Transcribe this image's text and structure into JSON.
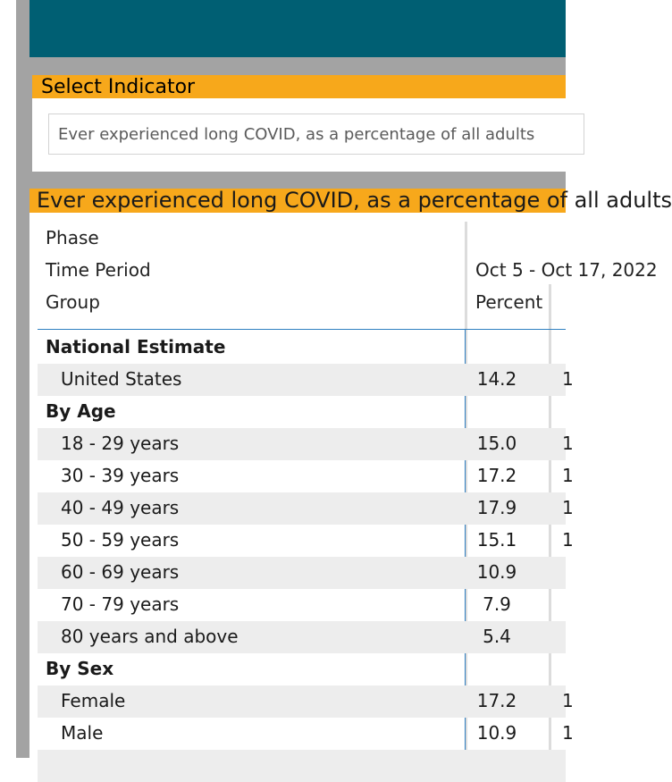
{
  "indicator": {
    "title": "Select Indicator",
    "selected": "Ever experienced long COVID, as a percentage of all adults"
  },
  "table": {
    "title": "Ever experienced long COVID, as a percentage of all adults",
    "header_phase": "Phase",
    "header_time": "Time Period",
    "header_group": "Group",
    "period_label": "Oct 5 - Oct 17, 2022",
    "percent_label": "Percent"
  },
  "rows": [
    {
      "label": "National Estimate",
      "value": "",
      "next": ""
    },
    {
      "label": "United States",
      "value": "14.2",
      "next": "1"
    },
    {
      "label": "By Age",
      "value": "",
      "next": ""
    },
    {
      "label": "18 - 29 years",
      "value": "15.0",
      "next": "1"
    },
    {
      "label": "30 - 39 years",
      "value": "17.2",
      "next": "1"
    },
    {
      "label": "40 - 49 years",
      "value": "17.9",
      "next": "1"
    },
    {
      "label": "50 - 59 years",
      "value": "15.1",
      "next": "1"
    },
    {
      "label": "60 - 69 years",
      "value": "10.9",
      "next": ""
    },
    {
      "label": "70 - 79 years",
      "value": "7.9",
      "next": ""
    },
    {
      "label": "80 years and above",
      "value": "5.4",
      "next": ""
    },
    {
      "label": "By Sex",
      "value": "",
      "next": ""
    },
    {
      "label": "Female",
      "value": "17.2",
      "next": "1"
    },
    {
      "label": "Male",
      "value": "10.9",
      "next": "1"
    }
  ],
  "colors": {
    "header_teal": "#005f73",
    "accent_orange": "#f7a81b",
    "rule_blue": "#2f7fc1"
  }
}
